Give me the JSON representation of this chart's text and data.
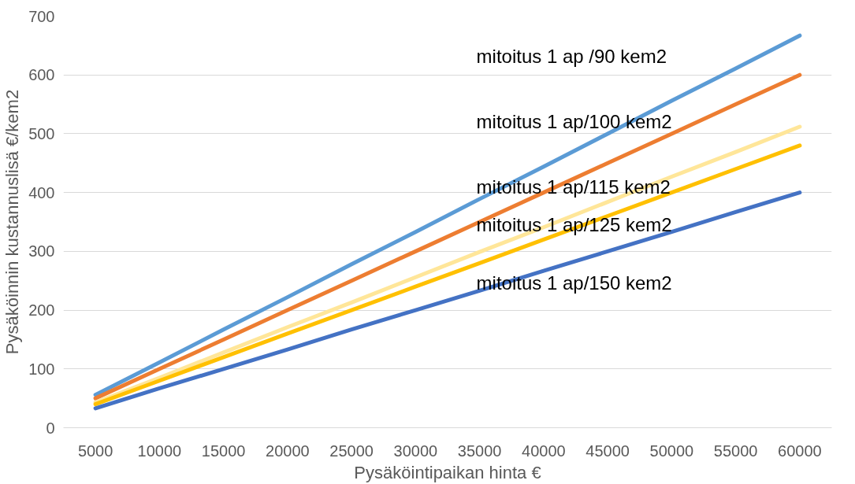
{
  "chart_data": {
    "type": "line",
    "xlabel": "Pysäköintipaikan hinta €",
    "ylabel": "Pysäköinnin kustannuslisä €/kem2",
    "categories": [
      "5000",
      "10000",
      "15000",
      "20000",
      "25000",
      "30000",
      "35000",
      "40000",
      "45000",
      "50000",
      "55000",
      "60000"
    ],
    "series": [
      {
        "name": "mitoitus 1 ap /90 kem2",
        "color": "#5b9bd5",
        "values": [
          56,
          111,
          167,
          222,
          278,
          333,
          389,
          444,
          500,
          556,
          611,
          667
        ]
      },
      {
        "name": "mitoitus 1 ap/100 kem2",
        "color": "#ed7d31",
        "values": [
          50,
          100,
          150,
          200,
          250,
          300,
          350,
          400,
          450,
          500,
          550,
          600
        ]
      },
      {
        "name": "mitoitus 1 ap/115 kem2",
        "color": "#ffe699",
        "values": [
          43,
          85,
          128,
          171,
          213,
          256,
          299,
          341,
          384,
          427,
          469,
          512
        ]
      },
      {
        "name": "mitoitus 1 ap/125 kem2",
        "color": "#ffc000",
        "values": [
          40,
          80,
          120,
          160,
          200,
          240,
          280,
          320,
          360,
          400,
          440,
          480
        ]
      },
      {
        "name": "mitoitus 1 ap/150 kem2",
        "color": "#4472c4",
        "values": [
          33,
          67,
          100,
          133,
          167,
          200,
          233,
          267,
          300,
          333,
          367,
          400
        ]
      }
    ],
    "ylim": [
      0,
      700
    ],
    "yticks": [
      0,
      100,
      200,
      300,
      400,
      500,
      600,
      700
    ],
    "grid": "y",
    "marker": "none",
    "line_style": "solid"
  }
}
